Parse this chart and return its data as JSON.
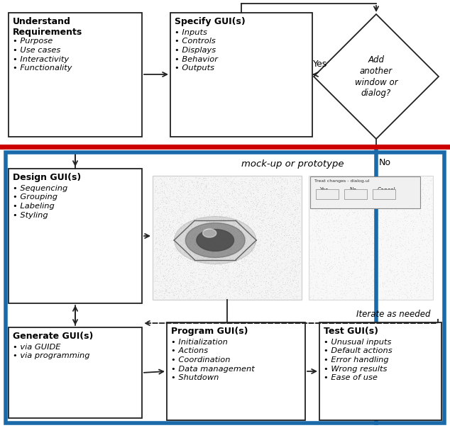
{
  "bg_color": "#ffffff",
  "red_line_color": "#cc0000",
  "blue_line_color": "#1a6aaa",
  "box_edge_color": "#222222",
  "arrow_color": "#222222",
  "text_color": "#000000",
  "box_fill": "#ffffff",
  "understand_title": "Understand\nRequirements",
  "understand_bullets": [
    "Purpose",
    "Use cases",
    "Interactivity",
    "Functionality"
  ],
  "specify_title": "Specify GUI(s)",
  "specify_bullets": [
    "Inputs",
    "Controls",
    "Displays",
    "Behavior",
    "Outputs"
  ],
  "design_title": "Design GUI(s)",
  "design_bullets": [
    "Sequencing",
    "Grouping",
    "Labeling",
    "Styling"
  ],
  "generate_title": "Generate GUI(s)",
  "generate_bullets": [
    "via GUIDE",
    "via programming"
  ],
  "program_title": "Program GUI(s)",
  "program_bullets": [
    "Initialization",
    "Actions",
    "Coordination",
    "Data management",
    "Shutdown"
  ],
  "test_title": "Test GUI(s)",
  "test_bullets": [
    "Unusual inputs",
    "Default actions",
    "Error handling",
    "Wrong results",
    "Ease of use"
  ],
  "diamond_text": "Add\nanother\nwindow or\ndialog?",
  "mockup_label": "mock-up or prototype",
  "iterate_label": "Iterate as needed",
  "yes_label": "Yes",
  "no_label": "No"
}
